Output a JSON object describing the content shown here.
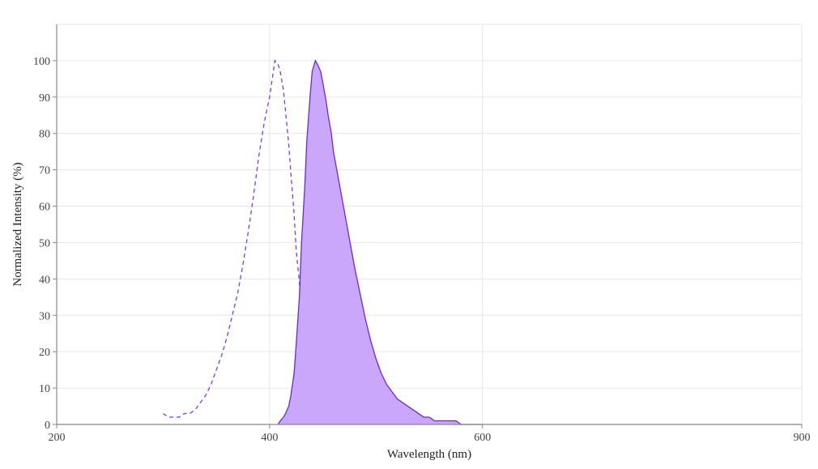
{
  "chart_data": {
    "type": "area",
    "title": "",
    "xlabel": "Wavelength (nm)",
    "ylabel": "Normalized Intensity (%)",
    "xlim": [
      200,
      900
    ],
    "ylim": [
      0,
      110
    ],
    "x_ticks": [
      200,
      400,
      600,
      900
    ],
    "y_ticks": [
      0,
      10,
      20,
      30,
      40,
      50,
      60,
      70,
      80,
      90,
      100
    ],
    "grid": true,
    "legend": "none",
    "colors": {
      "excitation_line": "#7d3cde",
      "emission_line": "#6a2ad6",
      "emission_fill": "#caa7fb",
      "grid": "#e6e6e6",
      "axis": "#888888"
    },
    "series": [
      {
        "style": "dashed",
        "x": [
          300,
          305,
          310,
          315,
          320,
          325,
          330,
          335,
          340,
          345,
          350,
          355,
          360,
          365,
          370,
          375,
          380,
          385,
          390,
          395,
          400,
          403,
          405,
          408,
          410,
          413,
          415,
          418,
          420,
          423,
          425,
          428,
          430,
          433,
          435,
          438,
          440,
          443,
          445,
          448,
          450
        ],
        "y": [
          3,
          2,
          2,
          2,
          3,
          3,
          4,
          6,
          8,
          11,
          15,
          19,
          24,
          30,
          36,
          44,
          53,
          63,
          74,
          83,
          90,
          96,
          100,
          99,
          97,
          92,
          86,
          77,
          69,
          58,
          48,
          39,
          31,
          23,
          16,
          11,
          7,
          5,
          3,
          2,
          2
        ]
      },
      {
        "style": "filled",
        "x": [
          408,
          410,
          413,
          415,
          418,
          420,
          423,
          425,
          428,
          430,
          433,
          435,
          438,
          440,
          443,
          445,
          448,
          450,
          453,
          455,
          458,
          460,
          465,
          470,
          475,
          480,
          485,
          490,
          495,
          500,
          505,
          510,
          515,
          520,
          525,
          530,
          535,
          540,
          545,
          550,
          555,
          560,
          565,
          570,
          575,
          580,
          585,
          590,
          595,
          600
        ],
        "y": [
          0,
          1,
          2,
          3,
          5,
          8,
          14,
          22,
          35,
          50,
          65,
          78,
          90,
          97,
          100,
          99,
          97,
          94,
          89,
          85,
          80,
          75,
          67,
          59,
          51,
          43,
          36,
          29,
          23,
          18,
          14,
          11,
          9,
          7,
          6,
          5,
          4,
          3,
          2,
          2,
          1,
          1,
          1,
          1,
          1,
          0,
          0,
          0,
          0,
          0
        ]
      }
    ]
  }
}
